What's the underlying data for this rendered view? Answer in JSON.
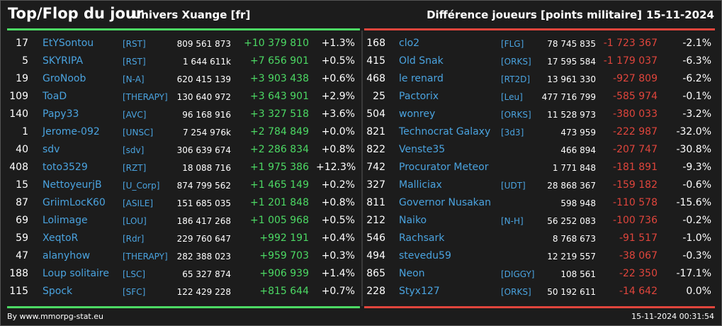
{
  "header": {
    "title": "Top/Flop du jour",
    "universe": "Univers Xuange [fr]",
    "metric": "Différence joueurs [points militaire]",
    "date": "15-11-2024"
  },
  "top": [
    {
      "rank": "17",
      "name": "EtYSontou",
      "ally": "[RST]",
      "points": "809 561 873",
      "diff": "+10 379 810",
      "pct": "+1.3%"
    },
    {
      "rank": "5",
      "name": "SKYRIPA",
      "ally": "[RST]",
      "points": "1 644 611k",
      "diff": "+7 656 901",
      "pct": "+0.5%"
    },
    {
      "rank": "19",
      "name": "GroNoob",
      "ally": "[N-A]",
      "points": "620 415 139",
      "diff": "+3 903 438",
      "pct": "+0.6%"
    },
    {
      "rank": "109",
      "name": "ToaD",
      "ally": "[THERAPY]",
      "points": "130 640 972",
      "diff": "+3 643 901",
      "pct": "+2.9%"
    },
    {
      "rank": "140",
      "name": "Papy33",
      "ally": "[AVC]",
      "points": "96 168 916",
      "diff": "+3 327 518",
      "pct": "+3.6%"
    },
    {
      "rank": "1",
      "name": "Jerome-092",
      "ally": "[UNSC]",
      "points": "7 254 976k",
      "diff": "+2 784 849",
      "pct": "+0.0%"
    },
    {
      "rank": "40",
      "name": "sdv",
      "ally": "[sdv]",
      "points": "306 639 674",
      "diff": "+2 286 834",
      "pct": "+0.8%"
    },
    {
      "rank": "408",
      "name": "toto3529",
      "ally": "[RZT]",
      "points": "18 088 716",
      "diff": "+1 975 386",
      "pct": "+12.3%"
    },
    {
      "rank": "15",
      "name": "NettoyeurjB",
      "ally": "[U_Corp]",
      "points": "874 799 562",
      "diff": "+1 465 149",
      "pct": "+0.2%"
    },
    {
      "rank": "87",
      "name": "GriimLocK60",
      "ally": "[ASILE]",
      "points": "151 685 035",
      "diff": "+1 201 848",
      "pct": "+0.8%"
    },
    {
      "rank": "69",
      "name": "Lolimage",
      "ally": "[LOU]",
      "points": "186 417 268",
      "diff": "+1 005 968",
      "pct": "+0.5%"
    },
    {
      "rank": "59",
      "name": "XeqtoR",
      "ally": "[Rdr]",
      "points": "229 760 647",
      "diff": "+992 191",
      "pct": "+0.4%"
    },
    {
      "rank": "47",
      "name": "alanyhow",
      "ally": "[THERAPY]",
      "points": "282 388 023",
      "diff": "+959 703",
      "pct": "+0.3%"
    },
    {
      "rank": "188",
      "name": "Loup solitaire",
      "ally": "[LSC]",
      "points": "65 327 874",
      "diff": "+906 939",
      "pct": "+1.4%"
    },
    {
      "rank": "115",
      "name": "Spock",
      "ally": "[SFC]",
      "points": "122 429 228",
      "diff": "+815 644",
      "pct": "+0.7%"
    }
  ],
  "flop": [
    {
      "rank": "168",
      "name": "clo2",
      "ally": "[FLG]",
      "points": "78 745 835",
      "diff": "-1 723 367",
      "pct": "-2.1%"
    },
    {
      "rank": "415",
      "name": "Old Snak",
      "ally": "[ORKS]",
      "points": "17 595 584",
      "diff": "-1 179 037",
      "pct": "-6.3%"
    },
    {
      "rank": "468",
      "name": "le renard",
      "ally": "[RT2D]",
      "points": "13 961 330",
      "diff": "-927 809",
      "pct": "-6.2%"
    },
    {
      "rank": "25",
      "name": "Pactorix",
      "ally": "[Leu]",
      "points": "477 716 799",
      "diff": "-585 974",
      "pct": "-0.1%"
    },
    {
      "rank": "504",
      "name": "wonrey",
      "ally": "[ORKS]",
      "points": "11 528 973",
      "diff": "-380 033",
      "pct": "-3.2%"
    },
    {
      "rank": "821",
      "name": "Technocrat Galaxy",
      "ally": "[3d3]",
      "points": "473 959",
      "diff": "-222 987",
      "pct": "-32.0%"
    },
    {
      "rank": "822",
      "name": "Venste35",
      "ally": "",
      "points": "466 894",
      "diff": "-207 747",
      "pct": "-30.8%"
    },
    {
      "rank": "742",
      "name": "Procurator Meteor",
      "ally": "",
      "points": "1 771 848",
      "diff": "-181 891",
      "pct": "-9.3%"
    },
    {
      "rank": "327",
      "name": "Malliciax",
      "ally": "[UDT]",
      "points": "28 868 367",
      "diff": "-159 182",
      "pct": "-0.6%"
    },
    {
      "rank": "811",
      "name": "Governor Nusakan",
      "ally": "",
      "points": "598 948",
      "diff": "-110 578",
      "pct": "-15.6%"
    },
    {
      "rank": "212",
      "name": "Naiko",
      "ally": "[N-H]",
      "points": "56 252 083",
      "diff": "-100 736",
      "pct": "-0.2%"
    },
    {
      "rank": "546",
      "name": "Rachsark",
      "ally": "",
      "points": "8 768 673",
      "diff": "-91 517",
      "pct": "-1.0%"
    },
    {
      "rank": "494",
      "name": "stevedu59",
      "ally": "",
      "points": "12 219 557",
      "diff": "-38 067",
      "pct": "-0.3%"
    },
    {
      "rank": "865",
      "name": "Neon",
      "ally": "[DIGGY]",
      "points": "108 561",
      "diff": "-22 350",
      "pct": "-17.1%"
    },
    {
      "rank": "228",
      "name": "Styx127",
      "ally": "[ORKS]",
      "points": "50 192 611",
      "diff": "-14 642",
      "pct": "0.0%"
    }
  ],
  "footer": {
    "credit": "By www.mmorpg-stat.eu",
    "timestamp": "15-11-2024 00:31:54"
  },
  "colors": {
    "background": "#1c1c1c",
    "positive": "#4cd964",
    "negative": "#e0453c",
    "link": "#4aa3df",
    "text": "#ffffff"
  }
}
